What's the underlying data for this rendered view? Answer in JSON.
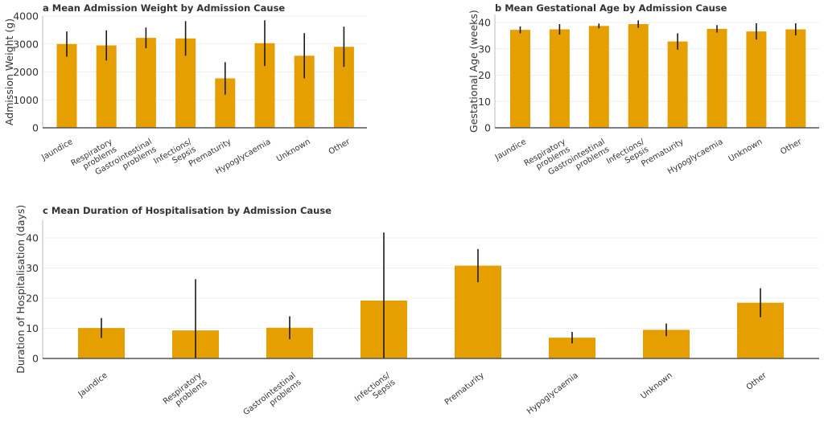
{
  "chart_data": [
    {
      "id": "a",
      "type": "bar",
      "title": "a Mean Admission Weight by Admission Cause",
      "xlabel": "",
      "ylabel": "Admission Weight (g)",
      "ylim": [
        0,
        4000
      ],
      "yticks": [
        0,
        1000,
        2000,
        3000,
        4000
      ],
      "grid": true,
      "color": "#E69F00",
      "categories": [
        "Jaundice",
        "Respiratory\nproblems",
        "Gastrointestinal\nproblems",
        "Infections/\nSepsis",
        "Prematurity",
        "Hypoglycaemia",
        "Unknown",
        "Other"
      ],
      "values": [
        3000,
        2950,
        3220,
        3200,
        1770,
        3030,
        2580,
        2900
      ],
      "errors": [
        450,
        540,
        370,
        620,
        580,
        820,
        810,
        720
      ]
    },
    {
      "id": "b",
      "type": "bar",
      "title": "b Mean Gestational Age by Admission Cause",
      "xlabel": "",
      "ylabel": "Gestational Age (weeks)",
      "ylim": [
        0,
        43
      ],
      "yticks": [
        0,
        10,
        20,
        30,
        40
      ],
      "grid": true,
      "color": "#E69F00",
      "categories": [
        "Jaundice",
        "Respiratory\nproblems",
        "Gastrointestinal\nproblems",
        "Infections/\nSepsis",
        "Prematurity",
        "Hypoglycaemia",
        "Unknown",
        "Other"
      ],
      "values": [
        37.2,
        37.4,
        38.7,
        39.4,
        32.8,
        37.6,
        36.6,
        37.4
      ],
      "errors": [
        1.3,
        2.0,
        0.9,
        1.4,
        3.1,
        1.4,
        3.1,
        2.3
      ]
    },
    {
      "id": "c",
      "type": "bar",
      "title": "c Mean Duration of Hospitalisation by Admission Cause",
      "xlabel": "",
      "ylabel": "Duration of Hospitalisation (days)",
      "ylim": [
        0,
        46
      ],
      "yticks": [
        0,
        10,
        20,
        30,
        40
      ],
      "grid": true,
      "color": "#E69F00",
      "categories": [
        "Jaundice",
        "Respiratory\nproblems",
        "Gastrointestinal\nproblems",
        "Infections/\nSepsis",
        "Prematurity",
        "Hypoglycaemia",
        "Unknown",
        "Other"
      ],
      "values": [
        10.1,
        9.3,
        10.2,
        19.2,
        30.8,
        6.9,
        9.5,
        18.5
      ],
      "errors": [
        3.3,
        17.0,
        3.8,
        22.6,
        5.5,
        1.9,
        2.1,
        4.8
      ]
    }
  ]
}
